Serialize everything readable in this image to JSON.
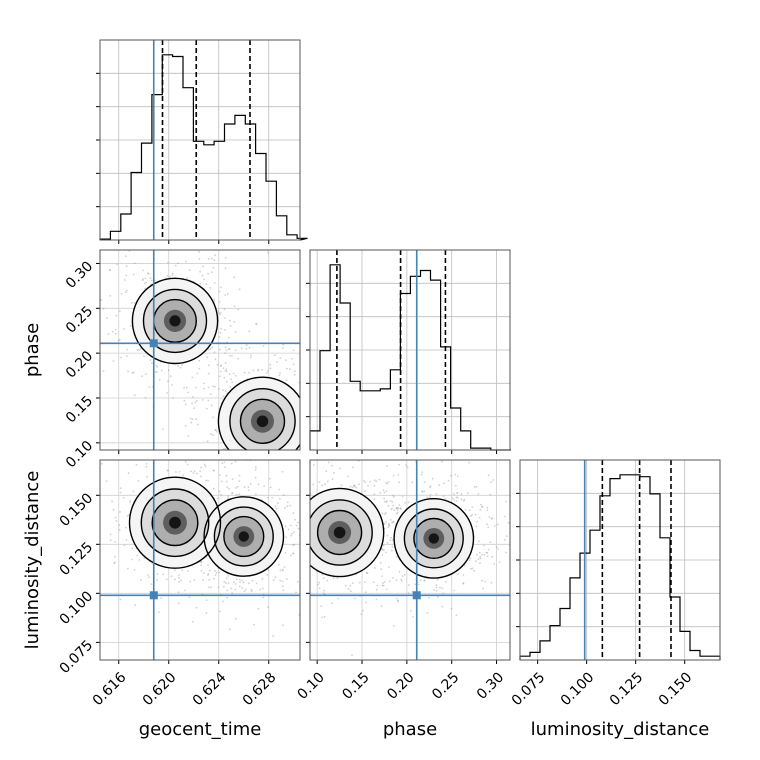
{
  "chart_data": {
    "type": "corner",
    "parameters": [
      "geocent_time",
      "phase",
      "luminosity_distance"
    ],
    "axis_labels": [
      "geocent_time",
      "phase",
      "luminosity_distance"
    ],
    "ranges": [
      [
        0.6145,
        0.6305
      ],
      [
        0.092,
        0.315
      ],
      [
        0.066,
        0.168
      ]
    ],
    "ticks": [
      {
        "values": [
          0.616,
          0.62,
          0.624,
          0.628
        ],
        "labels": [
          "0.616",
          "0.620",
          "0.624",
          "0.628"
        ]
      },
      {
        "values": [
          0.1,
          0.15,
          0.2,
          0.25,
          0.3
        ],
        "labels": [
          "0.10",
          "0.15",
          "0.20",
          "0.25",
          "0.30"
        ]
      },
      {
        "values": [
          0.075,
          0.1,
          0.125,
          0.15
        ],
        "labels": [
          "0.075",
          "0.100",
          "0.125",
          "0.150"
        ]
      }
    ],
    "truths": [
      0.6188,
      0.211,
      0.099
    ],
    "quantiles": [
      [
        0.6195,
        0.6222,
        0.6265
      ],
      [
        0.122,
        0.193,
        0.243
      ],
      [
        0.108,
        0.127,
        0.143
      ]
    ],
    "truth_color": "#4682b4",
    "grid": true,
    "histograms": [
      {
        "param": "geocent_time",
        "bin_width": 0.00083,
        "edges_start": 0.6145,
        "counts": [
          0.5,
          5,
          15,
          39,
          56,
          84,
          107,
          106,
          88,
          57,
          55,
          57,
          67,
          72,
          67,
          50,
          34,
          14,
          3,
          1
        ]
      },
      {
        "param": "phase",
        "bin_width": 0.0112,
        "edges_start": 0.092,
        "counts": [
          10,
          52,
          97,
          77,
          36,
          31,
          31,
          32,
          42,
          82,
          91,
          94,
          89,
          54,
          22,
          10,
          1,
          1,
          0,
          0
        ]
      },
      {
        "param": "luminosity_distance",
        "bin_width": 0.0051,
        "edges_start": 0.066,
        "counts": [
          2,
          4,
          10,
          18,
          27,
          43,
          56,
          68,
          86,
          95,
          97,
          97,
          96,
          87,
          64,
          33,
          15,
          5,
          2,
          2
        ]
      }
    ],
    "density_modes": [
      {
        "pair": [
          "geocent_time",
          "phase"
        ],
        "modes": [
          [
            0.6205,
            0.236,
            0.8
          ],
          [
            0.6275,
            0.124,
            0.9
          ]
        ]
      },
      {
        "pair": [
          "geocent_time",
          "luminosity_distance"
        ],
        "modes": [
          [
            0.6205,
            0.136,
            1.0
          ],
          [
            0.626,
            0.129,
            0.6
          ]
        ]
      },
      {
        "pair": [
          "phase",
          "luminosity_distance"
        ],
        "modes": [
          [
            0.125,
            0.131,
            0.9
          ],
          [
            0.23,
            0.128,
            0.6
          ]
        ]
      }
    ]
  }
}
